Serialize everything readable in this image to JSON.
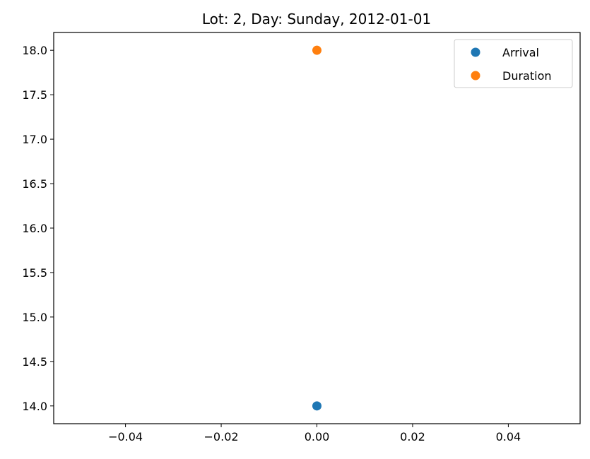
{
  "chart_data": {
    "type": "scatter",
    "title": "Lot: 2, Day: Sunday, 2012-01-01",
    "xlabel": "",
    "ylabel": "",
    "xlim": [
      -0.055,
      0.055
    ],
    "ylim": [
      13.8,
      18.2
    ],
    "xticks": [
      -0.04,
      -0.02,
      0.0,
      0.02,
      0.04
    ],
    "xtick_labels": [
      "−0.04",
      "−0.02",
      "0.00",
      "0.02",
      "0.04"
    ],
    "yticks": [
      14.0,
      14.5,
      15.0,
      15.5,
      16.0,
      16.5,
      17.0,
      17.5,
      18.0
    ],
    "ytick_labels": [
      "14.0",
      "14.5",
      "15.0",
      "15.5",
      "16.0",
      "16.5",
      "17.0",
      "17.5",
      "18.0"
    ],
    "grid": false,
    "legend_position": "top-right",
    "series": [
      {
        "name": "Arrival",
        "color": "#1f77b4",
        "points": [
          {
            "x": 0.0,
            "y": 14.0
          }
        ]
      },
      {
        "name": "Duration",
        "color": "#ff7f0e",
        "points": [
          {
            "x": 0.0,
            "y": 18.0
          }
        ]
      }
    ]
  }
}
